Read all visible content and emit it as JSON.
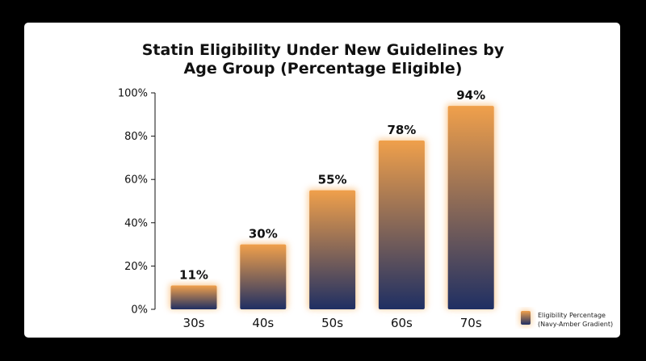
{
  "chart_data": {
    "type": "bar",
    "title_lines": [
      "Statin Eligibility Under New Guidelines by",
      "Age Group (Percentage Eligible)"
    ],
    "categories": [
      "30s",
      "40s",
      "50s",
      "60s",
      "70s"
    ],
    "series": [
      {
        "name": "Eligibility Percentage",
        "values": [
          11,
          30,
          55,
          78,
          94
        ]
      }
    ],
    "value_labels": [
      "11%",
      "30%",
      "55%",
      "78%",
      "94%"
    ],
    "y_ticks": [
      "0%",
      "20%",
      "40%",
      "60%",
      "80%",
      "100%"
    ],
    "ylim": [
      0,
      100
    ],
    "grid": false,
    "legend": {
      "position": "bottom-right",
      "lines": [
        "Eligibility Percentage",
        "(Navy-Amber Gradient)"
      ]
    },
    "colors": {
      "top": "#f0a04b",
      "bottom": "#1f2f63",
      "glow": "#f7a64a"
    }
  }
}
